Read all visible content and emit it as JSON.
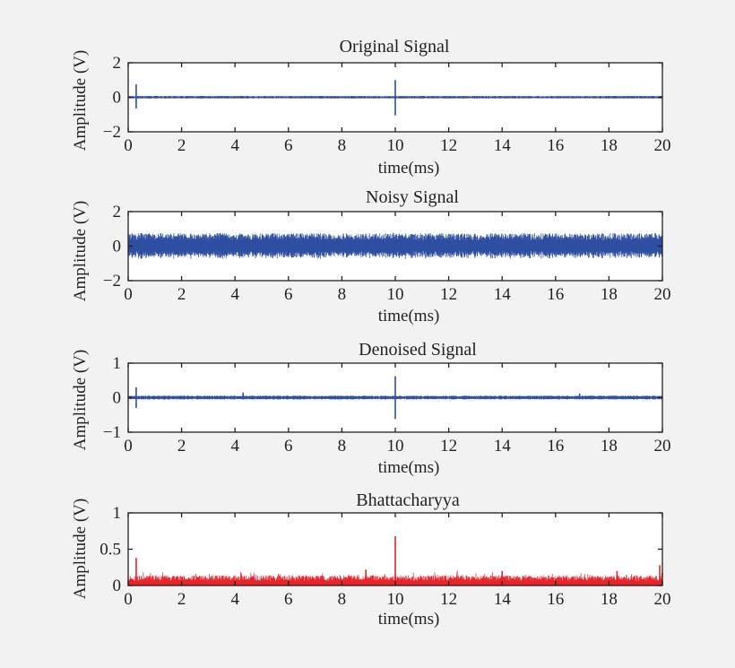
{
  "figure": {
    "background": "#f2f2f2",
    "axes_color": "#231f20",
    "plot_background": "#ffffff"
  },
  "chart_data": [
    {
      "type": "line",
      "title": "Original Signal",
      "xlabel": "time(ms)",
      "ylabel": "Amplitude (V)",
      "xlim": [
        0,
        20
      ],
      "ylim": [
        -2,
        2
      ],
      "xticks": [
        "0",
        "2",
        "4",
        "6",
        "8",
        "10",
        "12",
        "14",
        "16",
        "18",
        "20"
      ],
      "yticks": [
        "2",
        "0",
        "−2"
      ],
      "ytick_values": [
        2,
        0,
        -2
      ],
      "series": [
        {
          "name": "Original Signal",
          "color": "#2e4ea1",
          "baseline": 0,
          "noise_amplitude": 0.08,
          "spikes": [
            {
              "x": 0.3,
              "max": 0.75,
              "min": -0.65
            },
            {
              "x": 10.0,
              "max": 1.0,
              "min": -1.05
            }
          ]
        }
      ]
    },
    {
      "type": "line",
      "title": "Noisy Signal",
      "xlabel": "time(ms)",
      "ylabel": "Amplitude (V)",
      "xlim": [
        0,
        20
      ],
      "ylim": [
        -2,
        2
      ],
      "xticks": [
        "0",
        "2",
        "4",
        "6",
        "8",
        "10",
        "12",
        "14",
        "16",
        "18",
        "20"
      ],
      "yticks": [
        "2",
        "0",
        "−2"
      ],
      "ytick_values": [
        2,
        0,
        -2
      ],
      "series": [
        {
          "name": "Noisy Signal",
          "color": "#2e4ea1",
          "baseline": 0,
          "noise_amplitude": 0.75,
          "spikes": []
        }
      ]
    },
    {
      "type": "line",
      "title": "Denoised Signal",
      "xlabel": "time(ms)",
      "ylabel": "Amplitude (V)",
      "xlim": [
        0,
        20
      ],
      "ylim": [
        -1,
        1
      ],
      "xticks": [
        "0",
        "2",
        "4",
        "6",
        "8",
        "10",
        "12",
        "14",
        "16",
        "18",
        "20"
      ],
      "yticks": [
        "1",
        "0",
        "−1"
      ],
      "ytick_values": [
        1,
        0,
        -1
      ],
      "series": [
        {
          "name": "Denoised Signal",
          "color": "#2e4ea1",
          "baseline": 0,
          "noise_amplitude": 0.06,
          "spikes": [
            {
              "x": 0.3,
              "max": 0.3,
              "min": -0.3
            },
            {
              "x": 4.3,
              "max": 0.15,
              "min": -0.05
            },
            {
              "x": 10.0,
              "max": 0.62,
              "min": -0.62
            },
            {
              "x": 16.9,
              "max": 0.12,
              "min": -0.05
            }
          ]
        }
      ]
    },
    {
      "type": "line",
      "title": "Bhattacharyya",
      "xlabel": "time(ms)",
      "ylabel": "Amplitude (V)",
      "xlim": [
        0,
        20
      ],
      "ylim": [
        0,
        1
      ],
      "xticks": [
        "0",
        "2",
        "4",
        "6",
        "8",
        "10",
        "12",
        "14",
        "16",
        "18",
        "20"
      ],
      "yticks": [
        "1",
        "0.5",
        "0"
      ],
      "ytick_values": [
        1,
        0.5,
        0
      ],
      "series": [
        {
          "name": "Bhattacharyya",
          "color": "#e8232a",
          "baseline": 0.02,
          "noise_amplitude": 0.12,
          "one_sided": true,
          "spikes": [
            {
              "x": 0.3,
              "max": 0.38,
              "min": 0
            },
            {
              "x": 8.9,
              "max": 0.22,
              "min": 0
            },
            {
              "x": 10.0,
              "max": 0.68,
              "min": 0
            },
            {
              "x": 14.0,
              "max": 0.2,
              "min": 0
            },
            {
              "x": 18.3,
              "max": 0.2,
              "min": 0
            },
            {
              "x": 19.9,
              "max": 0.28,
              "min": 0
            }
          ]
        }
      ]
    }
  ]
}
